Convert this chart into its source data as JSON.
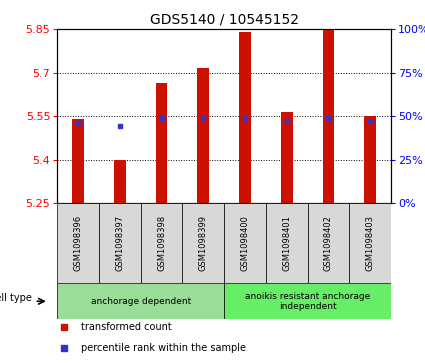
{
  "title": "GDS5140 / 10545152",
  "samples": [
    "GSM1098396",
    "GSM1098397",
    "GSM1098398",
    "GSM1098399",
    "GSM1098400",
    "GSM1098401",
    "GSM1098402",
    "GSM1098403"
  ],
  "bar_bottoms": [
    5.25,
    5.25,
    5.25,
    5.25,
    5.25,
    5.25,
    5.25,
    5.25
  ],
  "bar_tops": [
    5.54,
    5.4,
    5.665,
    5.715,
    5.84,
    5.565,
    5.845,
    5.55
  ],
  "blue_dot_values": [
    5.525,
    5.515,
    5.545,
    5.545,
    5.545,
    5.535,
    5.545,
    5.535
  ],
  "ylim_left": [
    5.25,
    5.85
  ],
  "yticks_left": [
    5.25,
    5.4,
    5.55,
    5.7,
    5.85
  ],
  "yticks_right": [
    0,
    25,
    50,
    75,
    100
  ],
  "ylim_right": [
    0,
    100
  ],
  "cell_type_groups": [
    {
      "label": "anchorage dependent",
      "indices": [
        0,
        1,
        2,
        3
      ],
      "color": "#99dd99"
    },
    {
      "label": "anoikis resistant anchorage\nindependent",
      "indices": [
        4,
        5,
        6,
        7
      ],
      "color": "#66ee66"
    }
  ],
  "bar_color": "#cc1100",
  "dot_color": "#3333cc",
  "sample_bg_color": "#d8d8d8",
  "plot_bg": "#ffffff",
  "legend_items": [
    {
      "label": "transformed count",
      "color": "#cc1100"
    },
    {
      "label": "percentile rank within the sample",
      "color": "#3333cc"
    }
  ],
  "cell_type_label": "cell type",
  "title_fontsize": 10,
  "tick_fontsize": 8,
  "label_fontsize": 7.5
}
